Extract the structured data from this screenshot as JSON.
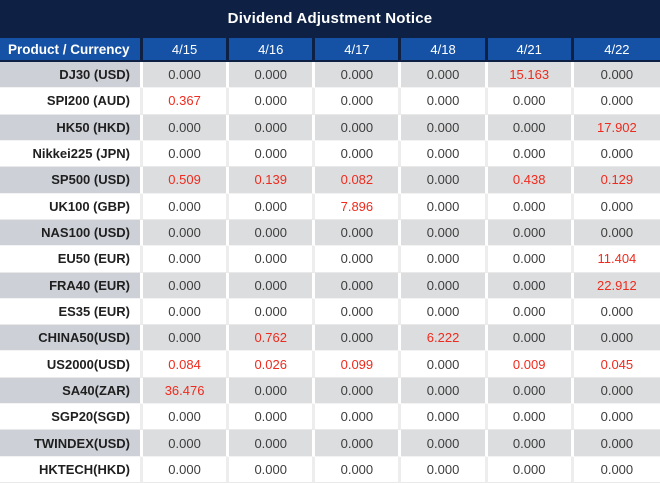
{
  "title": "Dividend Adjustment Notice",
  "table": {
    "product_header": "Product / Currency",
    "date_columns": [
      "4/15",
      "4/16",
      "4/17",
      "4/18",
      "4/21",
      "4/22"
    ],
    "rows": [
      {
        "product": "DJ30 (USD)",
        "values": [
          "0.000",
          "0.000",
          "0.000",
          "0.000",
          "15.163",
          "0.000"
        ],
        "red_indices": [
          4
        ]
      },
      {
        "product": "SPI200 (AUD)",
        "values": [
          "0.367",
          "0.000",
          "0.000",
          "0.000",
          "0.000",
          "0.000"
        ],
        "red_indices": [
          0
        ]
      },
      {
        "product": "HK50 (HKD)",
        "values": [
          "0.000",
          "0.000",
          "0.000",
          "0.000",
          "0.000",
          "17.902"
        ],
        "red_indices": [
          5
        ]
      },
      {
        "product": "Nikkei225 (JPN)",
        "values": [
          "0.000",
          "0.000",
          "0.000",
          "0.000",
          "0.000",
          "0.000"
        ],
        "red_indices": []
      },
      {
        "product": "SP500 (USD)",
        "values": [
          "0.509",
          "0.139",
          "0.082",
          "0.000",
          "0.438",
          "0.129"
        ],
        "red_indices": [
          0,
          1,
          2,
          4,
          5
        ]
      },
      {
        "product": "UK100 (GBP)",
        "values": [
          "0.000",
          "0.000",
          "7.896",
          "0.000",
          "0.000",
          "0.000"
        ],
        "red_indices": [
          2
        ]
      },
      {
        "product": "NAS100 (USD)",
        "values": [
          "0.000",
          "0.000",
          "0.000",
          "0.000",
          "0.000",
          "0.000"
        ],
        "red_indices": []
      },
      {
        "product": "EU50 (EUR)",
        "values": [
          "0.000",
          "0.000",
          "0.000",
          "0.000",
          "0.000",
          "11.404"
        ],
        "red_indices": [
          5
        ]
      },
      {
        "product": "FRA40 (EUR)",
        "values": [
          "0.000",
          "0.000",
          "0.000",
          "0.000",
          "0.000",
          "22.912"
        ],
        "red_indices": [
          5
        ]
      },
      {
        "product": "ES35 (EUR)",
        "values": [
          "0.000",
          "0.000",
          "0.000",
          "0.000",
          "0.000",
          "0.000"
        ],
        "red_indices": []
      },
      {
        "product": "CHINA50(USD)",
        "values": [
          "0.000",
          "0.762",
          "0.000",
          "6.222",
          "0.000",
          "0.000"
        ],
        "red_indices": [
          1,
          3
        ]
      },
      {
        "product": "US2000(USD)",
        "values": [
          "0.084",
          "0.026",
          "0.099",
          "0.000",
          "0.009",
          "0.045"
        ],
        "red_indices": [
          0,
          1,
          2,
          4,
          5
        ]
      },
      {
        "product": "SA40(ZAR)",
        "values": [
          "36.476",
          "0.000",
          "0.000",
          "0.000",
          "0.000",
          "0.000"
        ],
        "red_indices": [
          0
        ]
      },
      {
        "product": "SGP20(SGD)",
        "values": [
          "0.000",
          "0.000",
          "0.000",
          "0.000",
          "0.000",
          "0.000"
        ],
        "red_indices": []
      },
      {
        "product": "TWINDEX(USD)",
        "values": [
          "0.000",
          "0.000",
          "0.000",
          "0.000",
          "0.000",
          "0.000"
        ],
        "red_indices": []
      },
      {
        "product": "HKTECH(HKD)",
        "values": [
          "0.000",
          "0.000",
          "0.000",
          "0.000",
          "0.000",
          "0.000"
        ],
        "red_indices": []
      }
    ]
  },
  "colors": {
    "title_bg": "#0e2145",
    "header_bg": "#1552a5",
    "header_separator": "#0e2145",
    "row_gray_product": "#cdd1d7",
    "row_gray_value": "#dcddde",
    "row_white": "#ffffff",
    "value_text": "#3d3d3d",
    "product_text": "#1f1f1f",
    "red_value": "#ee2b1e"
  }
}
